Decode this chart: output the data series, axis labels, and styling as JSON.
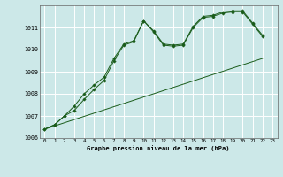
{
  "title": "Graphe pression niveau de la mer (hPa)",
  "background_color": "#cce8e8",
  "grid_color": "#b0d8d8",
  "line_color": "#1a5c1a",
  "xlim": [
    -0.5,
    23.5
  ],
  "ylim": [
    1006,
    1012.0
  ],
  "yticks": [
    1006,
    1007,
    1008,
    1009,
    1010,
    1011
  ],
  "xticks": [
    0,
    1,
    2,
    3,
    4,
    5,
    6,
    7,
    8,
    9,
    10,
    11,
    12,
    13,
    14,
    15,
    16,
    17,
    18,
    19,
    20,
    21,
    22,
    23
  ],
  "series1_x": [
    0,
    1,
    2,
    3,
    4,
    5,
    6,
    7,
    8,
    9,
    10,
    11,
    12,
    13,
    14,
    15,
    16,
    17,
    18,
    19,
    20,
    21,
    22
  ],
  "series1_y": [
    1006.4,
    1006.6,
    1007.0,
    1007.45,
    1008.0,
    1008.4,
    1008.75,
    1009.6,
    1010.25,
    1010.4,
    1011.3,
    1010.85,
    1010.25,
    1010.2,
    1010.25,
    1011.05,
    1011.5,
    1011.55,
    1011.7,
    1011.75,
    1011.75,
    1011.2,
    1010.65
  ],
  "series2_x": [
    0,
    1,
    2,
    3,
    4,
    5,
    6,
    7,
    8,
    9,
    10,
    11,
    12,
    13,
    14,
    15,
    16,
    17,
    18,
    19,
    20,
    21,
    22
  ],
  "series2_y": [
    1006.4,
    1006.6,
    1007.0,
    1007.25,
    1007.75,
    1008.2,
    1008.6,
    1009.5,
    1010.2,
    1010.35,
    1011.3,
    1010.8,
    1010.2,
    1010.15,
    1010.2,
    1011.0,
    1011.45,
    1011.5,
    1011.65,
    1011.7,
    1011.7,
    1011.15,
    1010.6
  ],
  "series3_x": [
    0,
    22
  ],
  "series3_y": [
    1006.4,
    1009.6
  ]
}
